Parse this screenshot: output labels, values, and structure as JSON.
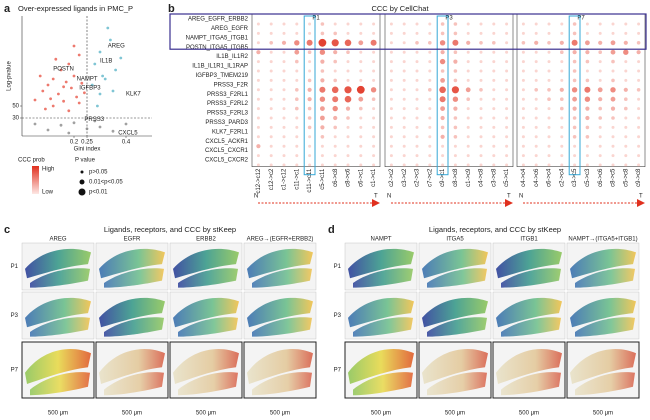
{
  "panel_a": {
    "letter": "a",
    "title": "Over-expressed ligands in PMC_P",
    "xlabel": "Gini index",
    "ylabel": "Log-pvalue",
    "chart_data": {
      "type": "scatter",
      "xlim": [
        0,
        0.5
      ],
      "ylim": [
        0,
        200
      ],
      "xticks": [
        0.2,
        0.25,
        0.4
      ],
      "yticks": [
        30,
        50
      ],
      "cutoff_x": 0.25,
      "cutoff_y": 30,
      "series": [
        {
          "color": "#e8584a",
          "x": [
            0.05,
            0.08,
            0.1,
            0.12,
            0.14,
            0.15,
            0.17,
            0.18,
            0.19,
            0.2,
            0.21,
            0.22,
            0.23,
            0.12,
            0.16,
            0.09,
            0.2,
            0.24,
            0.18,
            0.07,
            0.13,
            0.22,
            0.11,
            0.16
          ],
          "y": [
            60,
            75,
            85,
            95,
            70,
            110,
            90,
            120,
            80,
            100,
            65,
            135,
            88,
            50,
            58,
            45,
            150,
            72,
            42,
            100,
            128,
            55,
            62,
            82
          ]
        },
        {
          "color": "#5fb7c9",
          "x": [
            0.28,
            0.3,
            0.32,
            0.34,
            0.36,
            0.3,
            0.27,
            0.33,
            0.38,
            0.29,
            0.35,
            0.31
          ],
          "y": [
            120,
            140,
            95,
            160,
            110,
            70,
            85,
            180,
            130,
            50,
            75,
            100
          ]
        },
        {
          "color": "#8a8a8a",
          "x": [
            0.1,
            0.15,
            0.2,
            0.3,
            0.35,
            0.4,
            0.25,
            0.18,
            0.28,
            0.05
          ],
          "y": [
            10,
            18,
            22,
            15,
            8,
            20,
            12,
            5,
            25,
            20
          ]
        }
      ],
      "annotations": [
        {
          "text": "AREG",
          "x": 0.33,
          "y": 150,
          "color": "#e03a2a"
        },
        {
          "text": "IL1B",
          "x": 0.3,
          "y": 125,
          "color": "#e03a2a"
        },
        {
          "text": "POSTN",
          "x": 0.12,
          "y": 112,
          "color": "#222222"
        },
        {
          "text": "NAMPT",
          "x": 0.21,
          "y": 95,
          "color": "#e03a2a"
        },
        {
          "text": "IGFBP3",
          "x": 0.22,
          "y": 80,
          "color": "#e03a2a"
        },
        {
          "text": "KLK7",
          "x": 0.4,
          "y": 70,
          "color": "#e03a2a"
        },
        {
          "text": "PRSS3",
          "x": 0.24,
          "y": 28,
          "color": "#222222"
        },
        {
          "text": "CXCL5",
          "x": 0.37,
          "y": 5,
          "color": "#222222"
        }
      ]
    },
    "legend": {
      "color_title": "CCC prob",
      "high": "High",
      "low": "Low",
      "size_title": "P value",
      "sizes": [
        "p>0.05",
        "0.01<p<0.05",
        "p<0.01"
      ]
    }
  },
  "panel_b": {
    "letter": "b",
    "title": "CCC by CellChat",
    "start": "N",
    "end": "T",
    "rows": [
      {
        "label": "AREG_EGFR_ERBB2",
        "color": "#e03a2a"
      },
      {
        "label": "AREG_EGFR",
        "color": "#e03a2a"
      },
      {
        "label": "NAMPT_ITGA5_ITGB1",
        "color": "#e03a2a"
      },
      {
        "label": "POSTN_ITGA5_ITGB5",
        "color": "#222222"
      },
      {
        "label": "IL1B_IL1R2",
        "color": "#2f7fc1"
      },
      {
        "label": "IL1B_IL1R1_IL1RAP",
        "color": "#2f7fc1"
      },
      {
        "label": "IGFBP3_TMEM219",
        "color": "#2f7fc1"
      },
      {
        "label": "PRSS3_F2R",
        "color": "#222222"
      },
      {
        "label": "PRSS3_F2RL1",
        "color": "#222222"
      },
      {
        "label": "PRSS3_F2RL2",
        "color": "#222222"
      },
      {
        "label": "PRSS3_F2RL3",
        "color": "#222222"
      },
      {
        "label": "PRSS3_PARD3",
        "color": "#222222"
      },
      {
        "label": "KLK7_F2RL1",
        "color": "#2f7fc1"
      },
      {
        "label": "CXCL5_ACKR1",
        "color": "#222222"
      },
      {
        "label": "CXCL5_CXCR1",
        "color": "#222222"
      },
      {
        "label": "CXCL5_CXCR2",
        "color": "#222222"
      }
    ],
    "panels": [
      {
        "name": "P1",
        "columns": [
          "c12->c12",
          "c12->c2",
          "c1->c12",
          "c11->c1",
          "c11->c11",
          "c5->c11",
          "c6->c8",
          "c8->c6",
          "c6->c1",
          "c1->c1"
        ],
        "values": [
          [
            0.1,
            0.1,
            0.1,
            0.1,
            0.1,
            0.2,
            0.1,
            0.1,
            0.1,
            0.1
          ],
          [
            0.1,
            0.1,
            0.1,
            0.1,
            0.1,
            0.2,
            0.2,
            0.1,
            0.1,
            0.1
          ],
          [
            0.1,
            0.2,
            0.3,
            0.5,
            0.6,
            0.9,
            0.8,
            0.7,
            0.4,
            0.6
          ],
          [
            0.3,
            0.1,
            0.1,
            0.4,
            0.2,
            0.5,
            0.3,
            0.2,
            0.1,
            0.1
          ],
          [
            0.1,
            0.1,
            0.1,
            0.2,
            0.1,
            0.3,
            0.2,
            0.1,
            0.1,
            0.1
          ],
          [
            0.1,
            0.1,
            0.1,
            0.1,
            0.1,
            0.2,
            0.1,
            0.1,
            0.1,
            0.1
          ],
          [
            0.1,
            0.1,
            0.1,
            0.1,
            0.2,
            0.3,
            0.2,
            0.1,
            0.1,
            0.1
          ],
          [
            0.1,
            0.1,
            0.1,
            0.2,
            0.3,
            0.6,
            0.7,
            0.8,
            0.9,
            0.5
          ],
          [
            0.1,
            0.1,
            0.1,
            0.2,
            0.3,
            0.5,
            0.6,
            0.7,
            0.4,
            0.2
          ],
          [
            0.1,
            0.1,
            0.1,
            0.2,
            0.2,
            0.4,
            0.5,
            0.3,
            0.2,
            0.1
          ],
          [
            0.1,
            0.1,
            0.1,
            0.1,
            0.2,
            0.4,
            0.3,
            0.2,
            0.1,
            0.1
          ],
          [
            0.1,
            0.1,
            0.1,
            0.1,
            0.2,
            0.3,
            0.2,
            0.1,
            0.1,
            0.1
          ],
          [
            0.1,
            0.1,
            0.1,
            0.1,
            0.1,
            0.2,
            0.1,
            0.1,
            0.1,
            0.1
          ],
          [
            0.3,
            0.1,
            0.1,
            0.1,
            0.1,
            0.1,
            0.1,
            0.1,
            0.1,
            0.1
          ],
          [
            0.1,
            0.1,
            0.1,
            0.1,
            0.1,
            0.1,
            0.1,
            0.1,
            0.1,
            0.1
          ],
          [
            0.1,
            0.1,
            0.1,
            0.1,
            0.1,
            0.1,
            0.1,
            0.1,
            0.1,
            0.1
          ]
        ]
      },
      {
        "name": "P3",
        "columns": [
          "c2->c2",
          "c3->c2",
          "c2->c3",
          "c7->c2",
          "c9->c1",
          "c8->c8",
          "c1->c9",
          "c4->c8",
          "c3->c8",
          "c5->c1"
        ],
        "values": [
          [
            0.1,
            0.1,
            0.1,
            0.1,
            0.2,
            0.2,
            0.1,
            0.1,
            0.1,
            0.1
          ],
          [
            0.1,
            0.1,
            0.1,
            0.1,
            0.2,
            0.2,
            0.1,
            0.1,
            0.1,
            0.1
          ],
          [
            0.1,
            0.1,
            0.2,
            0.2,
            0.5,
            0.6,
            0.3,
            0.2,
            0.2,
            0.1
          ],
          [
            0.1,
            0.1,
            0.1,
            0.1,
            0.3,
            0.2,
            0.1,
            0.1,
            0.1,
            0.1
          ],
          [
            0.1,
            0.1,
            0.1,
            0.1,
            0.5,
            0.3,
            0.1,
            0.1,
            0.1,
            0.1
          ],
          [
            0.1,
            0.1,
            0.1,
            0.1,
            0.2,
            0.2,
            0.1,
            0.1,
            0.1,
            0.1
          ],
          [
            0.1,
            0.1,
            0.1,
            0.1,
            0.4,
            0.2,
            0.1,
            0.1,
            0.1,
            0.1
          ],
          [
            0.1,
            0.1,
            0.1,
            0.2,
            0.7,
            0.8,
            0.4,
            0.2,
            0.1,
            0.1
          ],
          [
            0.1,
            0.1,
            0.1,
            0.1,
            0.6,
            0.5,
            0.2,
            0.1,
            0.1,
            0.1
          ],
          [
            0.1,
            0.1,
            0.1,
            0.1,
            0.4,
            0.3,
            0.1,
            0.1,
            0.1,
            0.1
          ],
          [
            0.1,
            0.1,
            0.1,
            0.1,
            0.3,
            0.2,
            0.1,
            0.1,
            0.1,
            0.1
          ],
          [
            0.1,
            0.1,
            0.1,
            0.1,
            0.2,
            0.2,
            0.1,
            0.1,
            0.1,
            0.1
          ],
          [
            0.1,
            0.1,
            0.1,
            0.1,
            0.3,
            0.2,
            0.1,
            0.1,
            0.1,
            0.1
          ],
          [
            0.1,
            0.1,
            0.1,
            0.1,
            0.1,
            0.1,
            0.1,
            0.1,
            0.1,
            0.1
          ],
          [
            0.1,
            0.1,
            0.1,
            0.1,
            0.1,
            0.1,
            0.1,
            0.1,
            0.1,
            0.1
          ],
          [
            0.1,
            0.1,
            0.1,
            0.1,
            0.1,
            0.1,
            0.1,
            0.1,
            0.1,
            0.1
          ]
        ]
      },
      {
        "name": "P7",
        "columns": [
          "c4->c4",
          "c4->c6",
          "c6->c4",
          "c2->c4",
          "c3->c5",
          "c5->c3",
          "c6->c6",
          "c8->c5",
          "c5->c8",
          "c9->c8"
        ],
        "values": [
          [
            0.1,
            0.1,
            0.1,
            0.1,
            0.2,
            0.1,
            0.1,
            0.1,
            0.1,
            0.1
          ],
          [
            0.1,
            0.1,
            0.1,
            0.1,
            0.2,
            0.1,
            0.1,
            0.1,
            0.1,
            0.1
          ],
          [
            0.2,
            0.3,
            0.2,
            0.3,
            0.6,
            0.4,
            0.3,
            0.4,
            0.3,
            0.2
          ],
          [
            0.1,
            0.1,
            0.1,
            0.2,
            0.3,
            0.3,
            0.2,
            0.4,
            0.5,
            0.3
          ],
          [
            0.1,
            0.1,
            0.1,
            0.1,
            0.2,
            0.2,
            0.1,
            0.2,
            0.1,
            0.1
          ],
          [
            0.1,
            0.1,
            0.1,
            0.1,
            0.2,
            0.1,
            0.1,
            0.1,
            0.1,
            0.1
          ],
          [
            0.1,
            0.1,
            0.1,
            0.1,
            0.2,
            0.2,
            0.1,
            0.2,
            0.1,
            0.1
          ],
          [
            0.1,
            0.2,
            0.2,
            0.3,
            0.5,
            0.6,
            0.4,
            0.5,
            0.3,
            0.2
          ],
          [
            0.1,
            0.1,
            0.2,
            0.2,
            0.4,
            0.5,
            0.3,
            0.4,
            0.2,
            0.1
          ],
          [
            0.1,
            0.1,
            0.1,
            0.2,
            0.3,
            0.3,
            0.2,
            0.3,
            0.2,
            0.1
          ],
          [
            0.1,
            0.1,
            0.1,
            0.1,
            0.2,
            0.3,
            0.2,
            0.2,
            0.1,
            0.1
          ],
          [
            0.1,
            0.1,
            0.1,
            0.1,
            0.2,
            0.2,
            0.1,
            0.1,
            0.1,
            0.1
          ],
          [
            0.1,
            0.1,
            0.1,
            0.1,
            0.2,
            0.2,
            0.1,
            0.1,
            0.1,
            0.1
          ],
          [
            0.1,
            0.1,
            0.1,
            0.1,
            0.1,
            0.1,
            0.1,
            0.1,
            0.1,
            0.1
          ],
          [
            0.1,
            0.1,
            0.1,
            0.1,
            0.1,
            0.1,
            0.1,
            0.1,
            0.1,
            0.1
          ],
          [
            0.1,
            0.1,
            0.1,
            0.1,
            0.1,
            0.1,
            0.1,
            0.1,
            0.1,
            0.1
          ]
        ]
      }
    ]
  },
  "panel_c": {
    "letter": "c",
    "title": "Ligands, receptors, and CCC by stKeep",
    "columns": [
      "AREG",
      "EGFR",
      "ERBB2",
      "AREG→(EGFR+ERBB2)"
    ],
    "rows": [
      "P1",
      "P3",
      "P7"
    ],
    "scale_bar": "500 μm"
  },
  "panel_d": {
    "letter": "d",
    "title": "Ligands, receptors, and CCC by stKeep",
    "columns": [
      "NAMPT",
      "ITGA5",
      "ITGB1",
      "NAMPT→(ITGA5+ITGB1)"
    ],
    "rows": [
      "P1",
      "P3",
      "P7"
    ],
    "scale_bar": "500 μm"
  }
}
